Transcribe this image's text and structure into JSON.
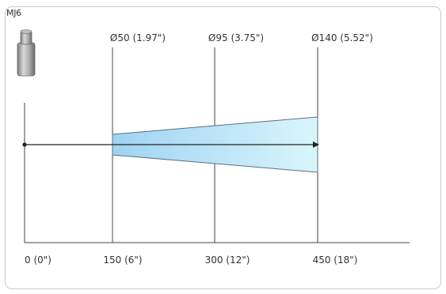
{
  "diagram": {
    "model_label": "MJ6",
    "sensor_icon": "cylindrical-sensor-icon",
    "beam_fill_start": "#9fd3f3",
    "beam_fill_end": "#d9f5fb",
    "beam_edge_color": "#5a6f7e",
    "line_color": "#333333",
    "distance_labels": [
      {
        "value": 0,
        "label": "0 (0\")"
      },
      {
        "value": 150,
        "label": "150 (6\")"
      },
      {
        "value": 300,
        "label": "300 (12\")"
      },
      {
        "value": 450,
        "label": "450 (18\")"
      }
    ],
    "diameter_labels": [
      {
        "at_distance": 150,
        "label": "Ø50 (1.97\")"
      },
      {
        "at_distance": 300,
        "label": "Ø95 (3.75\")"
      },
      {
        "at_distance": 450,
        "label": "Ø140 (5.52\")"
      }
    ]
  }
}
